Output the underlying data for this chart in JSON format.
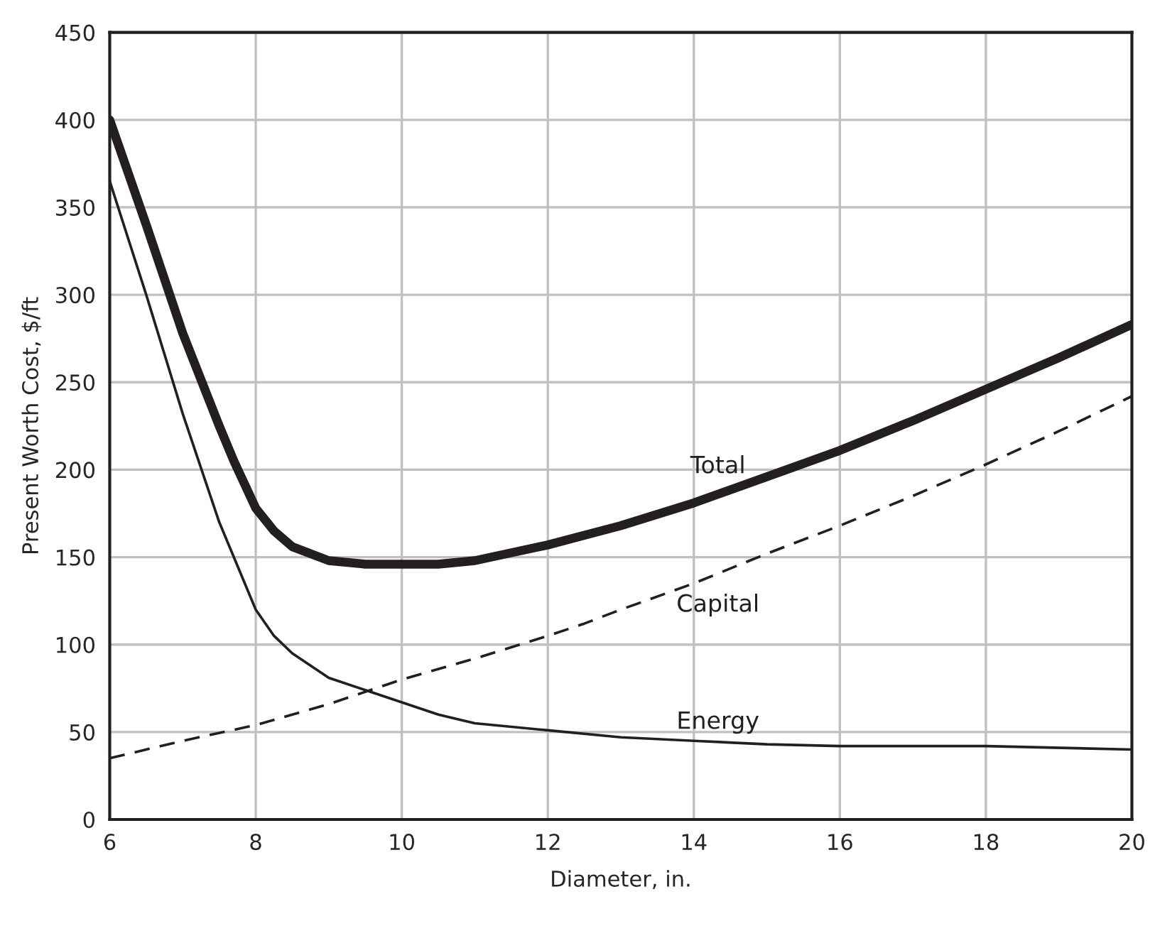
{
  "chart_data": {
    "type": "line",
    "xlabel": "Diameter, in.",
    "ylabel": "Present Worth Cost, $/ft",
    "xlim": [
      6,
      20
    ],
    "xticks": [
      6,
      8,
      10,
      12,
      14,
      16,
      18,
      20
    ],
    "ylim": [
      0,
      450
    ],
    "yticks": [
      0,
      50,
      100,
      150,
      200,
      250,
      300,
      350,
      400,
      450
    ],
    "grid": true,
    "series": [
      {
        "name": "Total",
        "color": "#231f20",
        "line_style": "solid",
        "x": [
          6,
          6.5,
          7,
          7.5,
          7.7,
          8,
          8.25,
          8.5,
          9,
          9.5,
          10,
          10.5,
          11,
          12,
          13,
          14,
          15,
          16,
          17,
          18,
          19,
          20
        ],
        "values": [
          400,
          340,
          278,
          225,
          205,
          178,
          165,
          156,
          148,
          146,
          146,
          146,
          148,
          157,
          168,
          181,
          196,
          211,
          228,
          246,
          264,
          283
        ]
      },
      {
        "name": "Capital",
        "color": "#231f20",
        "line_style": "dashed",
        "x": [
          6,
          7,
          8,
          9,
          10,
          11,
          12,
          12.5,
          13,
          14,
          15,
          16,
          17,
          18,
          19,
          20
        ],
        "values": [
          35,
          45,
          54,
          66,
          80,
          92,
          105,
          112,
          120,
          135,
          152,
          168,
          185,
          203,
          222,
          242
        ]
      },
      {
        "name": "Energy",
        "color": "#231f20",
        "line_style": "solid",
        "x": [
          6,
          6.5,
          7,
          7.5,
          8,
          8.25,
          8.5,
          9,
          9.5,
          10,
          10.5,
          11,
          12,
          13,
          14,
          15,
          16,
          18,
          20
        ],
        "values": [
          365,
          300,
          232,
          170,
          120,
          105,
          95,
          81,
          74,
          67,
          60,
          55,
          51,
          47,
          45,
          43,
          42,
          42,
          40
        ]
      }
    ]
  }
}
